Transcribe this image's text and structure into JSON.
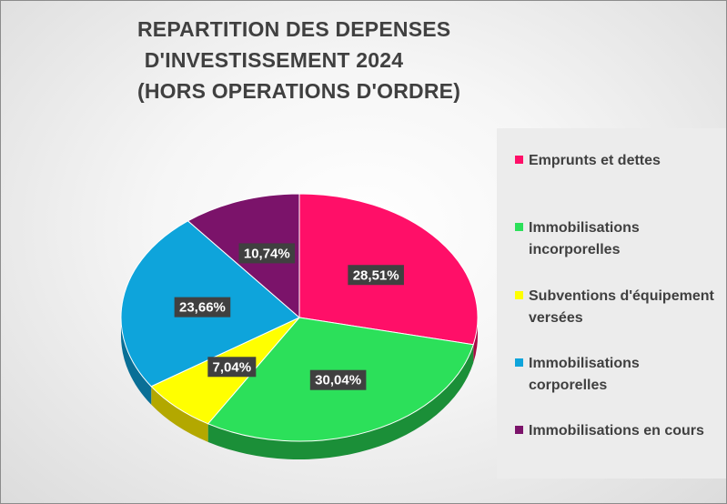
{
  "chart_data": {
    "type": "pie",
    "style": "3d",
    "title_lines": [
      "REPARTITION DES DEPENSES",
      "D'INVESTISSEMENT 2024",
      "(HORS OPERATIONS D'ORDRE)"
    ],
    "legend_position": "right",
    "slices": [
      {
        "label": "Emprunts et dettes",
        "value": 28.51,
        "display": "28,51%",
        "color": "#ff0f68",
        "side_color": "#a80a45"
      },
      {
        "label": "Immobilisations incorporelles",
        "value": 30.04,
        "display": "30,04%",
        "color": "#2ce05a",
        "side_color": "#1b8f38"
      },
      {
        "label": "Subventions d'équipement versées",
        "value": 7.04,
        "display": "7,04%",
        "color": "#ffff00",
        "side_color": "#b3a800"
      },
      {
        "label": "Immobilisations corporelles",
        "value": 23.66,
        "display": "23,66%",
        "color": "#0ea4db",
        "side_color": "#0a6f96"
      },
      {
        "label": "Immobilisations en cours",
        "value": 10.74,
        "display": "10,74%",
        "color": "#7b136a",
        "side_color": "#4e0c43"
      }
    ]
  }
}
